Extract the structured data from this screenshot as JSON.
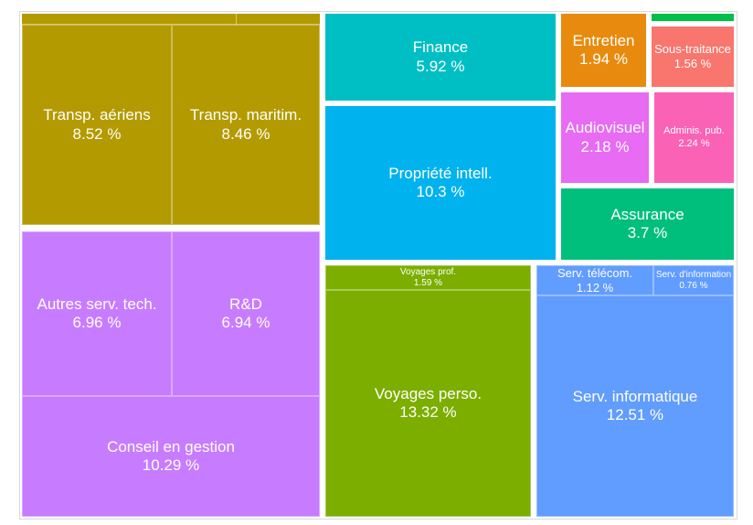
{
  "chart_data": {
    "type": "treemap",
    "title": "",
    "colors": {
      "transport": "#b39a00",
      "tech": "#c77cff",
      "finance": "#00bfc4",
      "ip": "#00b2ee",
      "maintenance": "#e88a0e",
      "green_strip": "#00c04a",
      "subcontracting": "#f8766d",
      "audiovisual": "#e76bf3",
      "public_admin": "#fa62b6",
      "insurance": "#00bf7d",
      "travel": "#7cae00",
      "it": "#619cff"
    },
    "groups": [
      {
        "key": "transport",
        "items": [
          {
            "label": "Transp. aériens",
            "value": "8.52 %"
          },
          {
            "label": "Transp. maritim.",
            "value": "8.46 %"
          }
        ]
      },
      {
        "key": "tech",
        "items": [
          {
            "label": "Autres serv. tech.",
            "value": "6.96 %"
          },
          {
            "label": "R&D",
            "value": "6.94 %"
          },
          {
            "label": "Conseil en gestion",
            "value": "10.29 %"
          }
        ]
      },
      {
        "key": "finance",
        "items": [
          {
            "label": "Finance",
            "value": "5.92 %"
          }
        ]
      },
      {
        "key": "ip",
        "items": [
          {
            "label": "Propriété intell.",
            "value": "10.3 %"
          }
        ]
      },
      {
        "key": "maintenance",
        "items": [
          {
            "label": "Entretien",
            "value": "1.94 %"
          }
        ]
      },
      {
        "key": "subcontracting",
        "items": [
          {
            "label": "Sous-traitance",
            "value": "1.56 %"
          }
        ]
      },
      {
        "key": "audiovisual",
        "items": [
          {
            "label": "Audiovisuel",
            "value": "2.18 %"
          }
        ]
      },
      {
        "key": "public_admin",
        "items": [
          {
            "label": "Adminis. pub.",
            "value": "2.24 %"
          }
        ]
      },
      {
        "key": "insurance",
        "items": [
          {
            "label": "Assurance",
            "value": "3.7 %"
          }
        ]
      },
      {
        "key": "travel",
        "items": [
          {
            "label": "Voyages prof.",
            "value": "1.59 %"
          },
          {
            "label": "Voyages perso.",
            "value": "13.32 %"
          }
        ]
      },
      {
        "key": "it",
        "items": [
          {
            "label": "Serv. télécom.",
            "value": "1.12 %"
          },
          {
            "label": "Serv. d'information",
            "value": "0.76 %"
          },
          {
            "label": "Serv. informatique",
            "value": "12.51 %"
          }
        ]
      }
    ]
  }
}
